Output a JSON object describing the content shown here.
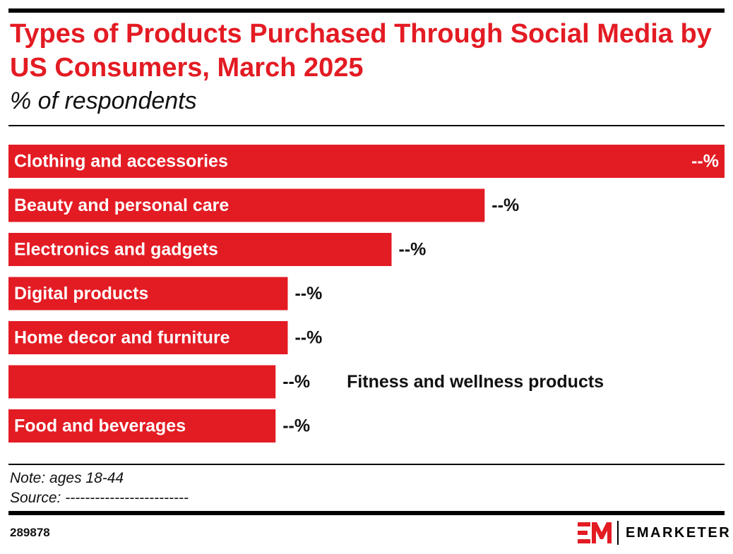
{
  "header": {
    "title": "Types of Products Purchased Through Social Media by US Consumers, March 2025",
    "subtitle": "% of respondents"
  },
  "chart_data": {
    "type": "bar",
    "orientation": "horizontal",
    "title": "Types of Products Purchased Through Social Media by US Consumers, March 2025",
    "subtitle": "% of respondents",
    "categories": [
      "Clothing and accessories",
      "Beauty and personal care",
      "Electronics and gadgets",
      "Digital products",
      "Home decor and furniture",
      "Fitness and wellness products",
      "Food and beverages"
    ],
    "values": [
      100,
      66.5,
      53.5,
      39,
      39,
      37.3,
      37.3
    ],
    "value_labels": [
      "--%",
      "--%",
      "--%",
      "--%",
      "--%",
      "--%",
      "--%"
    ],
    "xlim": [
      0,
      100
    ],
    "grid": false,
    "legend": "none",
    "bar_color": "#e31b23"
  },
  "footer": {
    "note": "Note: ages 18-44",
    "source": "Source: -------------------------",
    "chart_id": "289878",
    "brand": "EMARKETER"
  },
  "colors": {
    "accent": "#e31b23",
    "text": "#111111",
    "rule": "#000000"
  }
}
